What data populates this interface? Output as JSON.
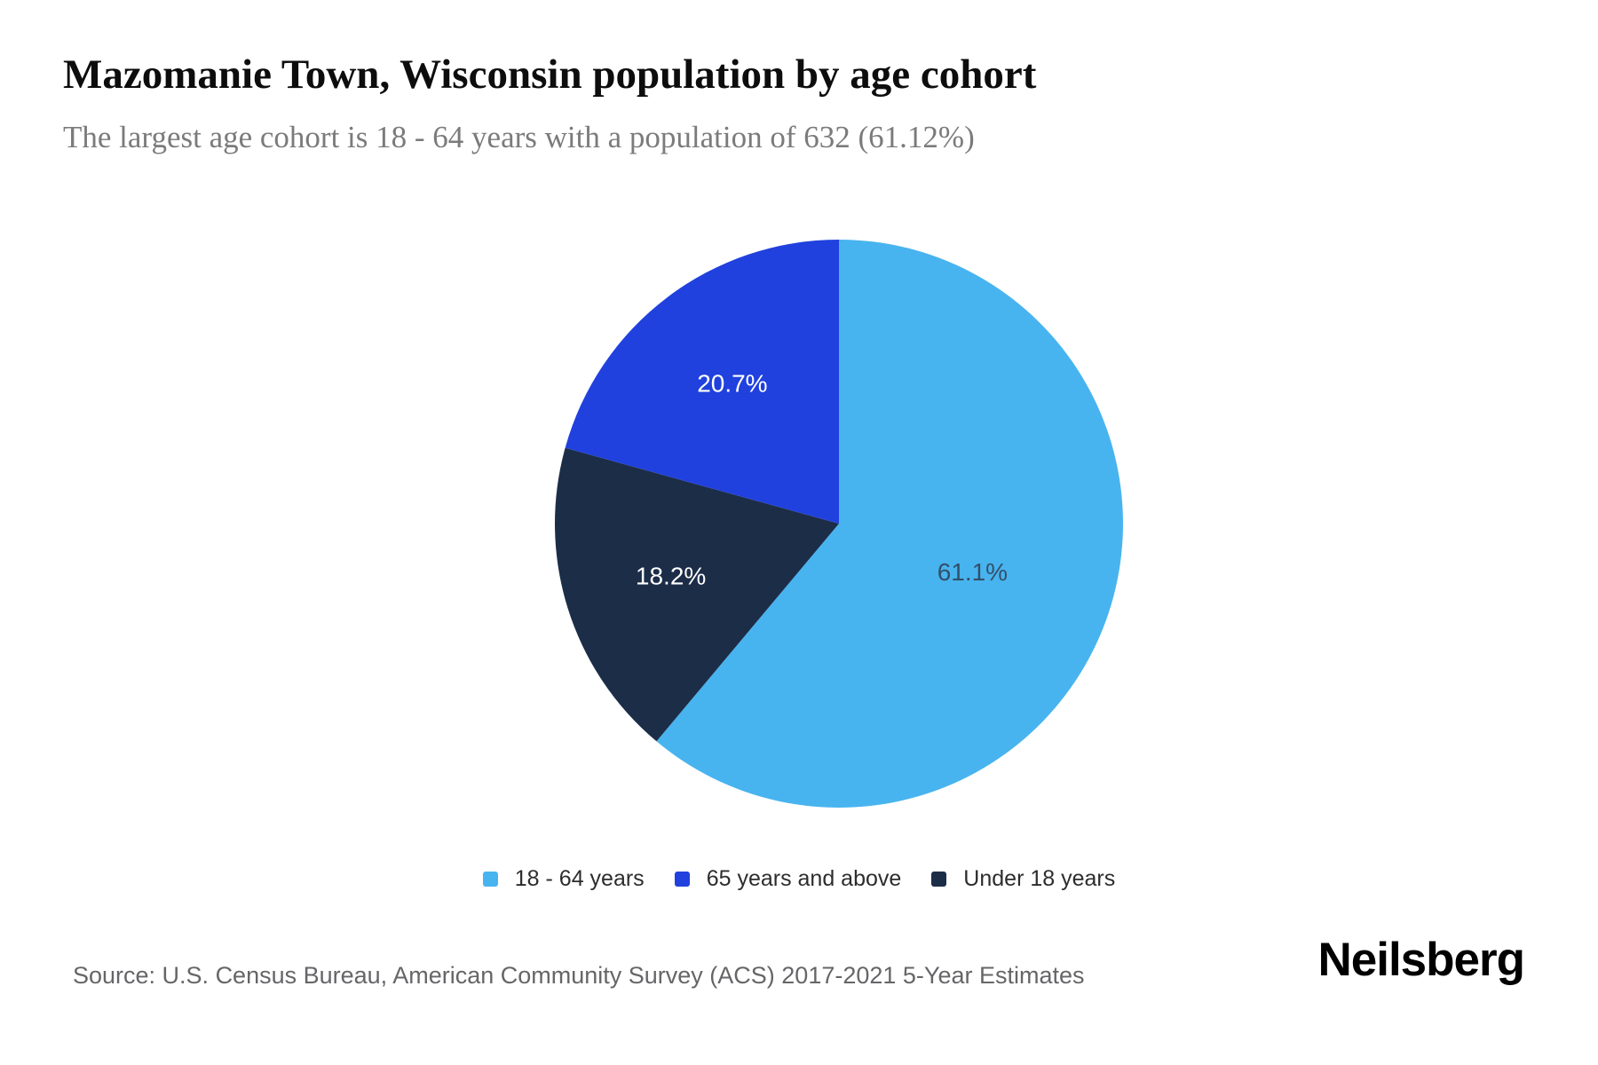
{
  "header": {
    "title": "Mazomanie Town, Wisconsin population by age cohort",
    "subtitle": "The largest age cohort is 18 - 64 years with a population of 632 (61.12%)"
  },
  "chart_data": {
    "type": "pie",
    "title": "Mazomanie Town, Wisconsin population by age cohort",
    "unit": "percent",
    "direction": "clockwise",
    "start_angle_deg": 0,
    "slices": [
      {
        "label": "18 - 64 years",
        "value": 61.1,
        "display_value": "61.1%",
        "color": "#48b4ef",
        "label_color": "#33506a"
      },
      {
        "label": "Under 18 years",
        "value": 18.2,
        "display_value": "18.2%",
        "color": "#1c2d48",
        "label_color": "#ffffff"
      },
      {
        "label": "65 years and above",
        "value": 20.7,
        "display_value": "20.7%",
        "color": "#2041dd",
        "label_color": "#ffffff"
      }
    ],
    "legend_position": "bottom",
    "largest_cohort": {
      "label": "18 - 64 years",
      "population": 632,
      "percent": "61.12%"
    }
  },
  "legend": {
    "items": [
      {
        "label": "18 - 64 years",
        "color": "#48b4ef"
      },
      {
        "label": "65 years and above",
        "color": "#2041dd"
      },
      {
        "label": "Under 18 years",
        "color": "#1c2d48"
      }
    ]
  },
  "footer": {
    "source": "Source: U.S. Census Bureau, American Community Survey (ACS) 2017-2021 5-Year Estimates",
    "brand": "Neilsberg"
  }
}
